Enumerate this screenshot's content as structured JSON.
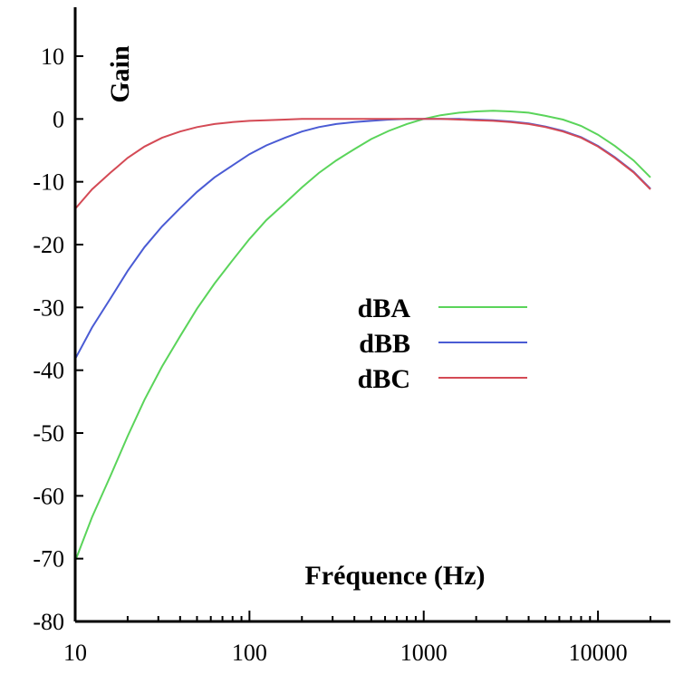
{
  "chart_data": {
    "type": "line",
    "xscale": "log",
    "xlim": [
      10,
      20000
    ],
    "ylim": [
      -80,
      15
    ],
    "xlabel": "Fréquence (Hz)",
    "ylabel": "Gain",
    "x_tick_labels": [
      "10",
      "100",
      "1000",
      "10000"
    ],
    "y_tick_labels": [
      "10",
      "0",
      "-10",
      "-20",
      "-30",
      "-40",
      "-50",
      "-60",
      "-70",
      "-80"
    ],
    "legend_position": "center-right",
    "grid": false,
    "series": [
      {
        "name": "dBA",
        "color": "#5ad45a",
        "x": [
          10,
          12.5,
          16,
          20,
          25,
          31.5,
          40,
          50,
          63,
          80,
          100,
          125,
          160,
          200,
          250,
          315,
          400,
          500,
          630,
          800,
          1000,
          1250,
          1600,
          2000,
          2500,
          3150,
          4000,
          5000,
          6300,
          8000,
          10000,
          12500,
          16000,
          20000
        ],
        "y": [
          -70.4,
          -63.4,
          -56.7,
          -50.5,
          -44.7,
          -39.4,
          -34.6,
          -30.2,
          -26.2,
          -22.5,
          -19.1,
          -16.1,
          -13.4,
          -10.9,
          -8.6,
          -6.6,
          -4.8,
          -3.2,
          -1.9,
          -0.8,
          0.0,
          0.6,
          1.0,
          1.2,
          1.3,
          1.2,
          1.0,
          0.5,
          -0.1,
          -1.1,
          -2.5,
          -4.3,
          -6.6,
          -9.3
        ]
      },
      {
        "name": "dBB",
        "color": "#4a5bd4",
        "x": [
          10,
          12.5,
          16,
          20,
          25,
          31.5,
          40,
          50,
          63,
          80,
          100,
          125,
          160,
          200,
          250,
          315,
          400,
          500,
          630,
          800,
          1000,
          1250,
          1600,
          2000,
          2500,
          3150,
          4000,
          5000,
          6300,
          8000,
          10000,
          12500,
          16000,
          20000
        ],
        "y": [
          -38.2,
          -33.2,
          -28.5,
          -24.2,
          -20.4,
          -17.1,
          -14.2,
          -11.6,
          -9.3,
          -7.4,
          -5.6,
          -4.2,
          -3.0,
          -2.0,
          -1.3,
          -0.8,
          -0.5,
          -0.3,
          -0.1,
          0.0,
          0.0,
          0.0,
          0.0,
          -0.1,
          -0.2,
          -0.4,
          -0.7,
          -1.2,
          -1.9,
          -2.9,
          -4.3,
          -6.1,
          -8.4,
          -11.1
        ]
      },
      {
        "name": "dBC",
        "color": "#d44a55",
        "x": [
          10,
          12.5,
          16,
          20,
          25,
          31.5,
          40,
          50,
          63,
          80,
          100,
          125,
          160,
          200,
          250,
          315,
          400,
          500,
          630,
          800,
          1000,
          1250,
          1600,
          2000,
          2500,
          3150,
          4000,
          5000,
          6300,
          8000,
          10000,
          12500,
          16000,
          20000
        ],
        "y": [
          -14.3,
          -11.2,
          -8.5,
          -6.2,
          -4.4,
          -3.0,
          -2.0,
          -1.3,
          -0.8,
          -0.5,
          -0.3,
          -0.2,
          -0.1,
          0.0,
          0.0,
          0.0,
          0.0,
          0.0,
          0.0,
          0.0,
          0.0,
          0.0,
          -0.1,
          -0.2,
          -0.3,
          -0.5,
          -0.8,
          -1.3,
          -2.0,
          -3.0,
          -4.4,
          -6.2,
          -8.5,
          -11.2
        ]
      }
    ]
  }
}
